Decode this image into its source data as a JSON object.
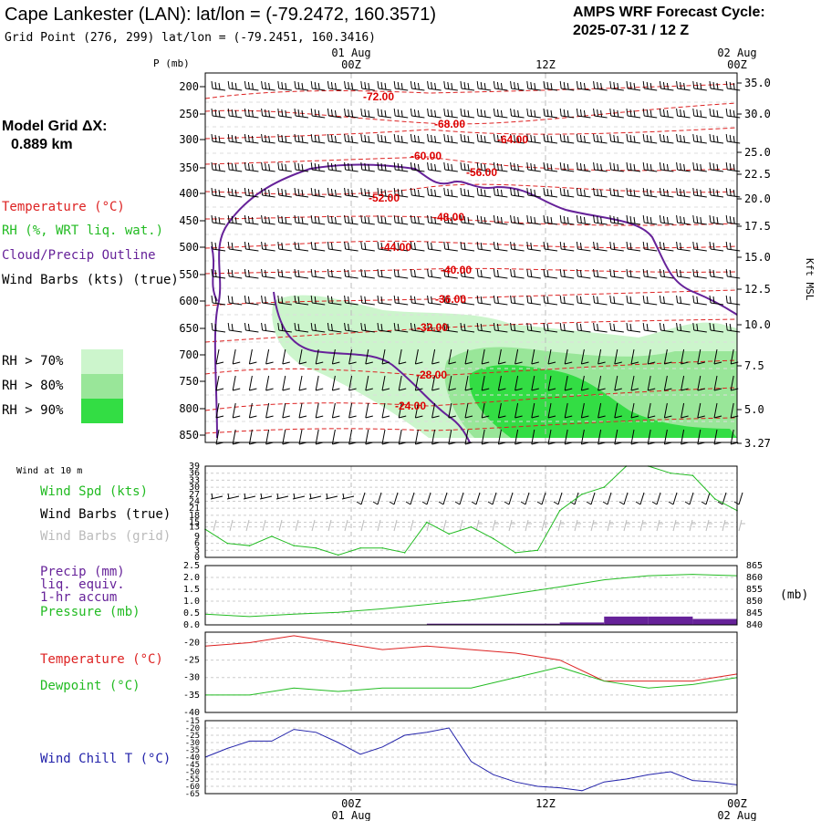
{
  "header": {
    "station_title": "Cape Lankester (LAN):  lat/lon = (-79.2472, 160.3571)",
    "grid_point": "Grid Point (276, 299) lat/lon = (-79.2451, 160.3416)",
    "cycle_title": "AMPS WRF Forecast Cycle:",
    "cycle_value": "2025-07-31 / 12  Z",
    "model_grid_label": "Model Grid ΔX:",
    "model_grid_value": "0.889 km"
  },
  "legend": {
    "temperature": "Temperature (°C)",
    "rh": "RH (%, WRT liq. wat.)",
    "cloud": "Cloud/Precip Outline",
    "wind": "Wind Barbs (kts) (true)",
    "rh70": "RH > 70%",
    "rh80": "RH > 80%",
    "rh90": "RH > 90%",
    "colors": {
      "rh70": "#ccf5cc",
      "rh80": "#99e699",
      "rh90": "#33dd44"
    }
  },
  "time_axis": {
    "top_labels": [
      {
        "label": "00Z",
        "date": "01 Aug"
      },
      {
        "label": "12Z",
        "date": ""
      },
      {
        "label": "00Z",
        "date": "02 Aug"
      }
    ],
    "bottom_labels": [
      {
        "label": "00Z",
        "date": "01 Aug"
      },
      {
        "label": "12Z",
        "date": ""
      },
      {
        "label": "00Z",
        "date": "02 Aug"
      }
    ]
  },
  "chart_data": [
    {
      "type": "heatmap",
      "name": "cross-section",
      "ylabel": "P (mb)",
      "ylabel_right": "Kft MSL",
      "y_ticks": [
        "200",
        "250",
        "300",
        "350",
        "400",
        "450",
        "500",
        "550",
        "600",
        "650",
        "700",
        "750",
        "800",
        "850"
      ],
      "y_ticks_right": [
        "35.0",
        "30.0",
        "25.0",
        "22.5",
        "20.0",
        "17.5",
        "15.0",
        "12.5",
        "10.0",
        "7.5",
        "5.0",
        "3.27"
      ],
      "temperature_labels": [
        "-72.00",
        "-68.00",
        "-64.00",
        "-60.00",
        "-56.00",
        "-52.00",
        "-48.00",
        "-44.00",
        "-40.00",
        "-36.00",
        "-32.00",
        "-28.00",
        "-24.00"
      ]
    },
    {
      "type": "line",
      "name": "wind",
      "title": "Wind at 10 m",
      "labels": [
        "Wind Spd (kts)",
        "Wind Barbs (true)",
        "Wind Barbs (grid)"
      ],
      "y_ticks": [
        "39",
        "36",
        "33",
        "30",
        "27",
        "24",
        "21",
        "18",
        "15",
        "13",
        "9",
        "6",
        "3",
        "0"
      ],
      "ylim": [
        0,
        39
      ],
      "x": [
        0,
        1,
        2,
        3,
        4,
        5,
        6,
        7,
        8,
        9,
        10,
        11,
        12,
        13,
        14,
        15,
        16,
        17,
        18,
        19,
        20,
        21,
        22,
        23,
        24
      ],
      "values": [
        12,
        6,
        5,
        9,
        5,
        4,
        1,
        4,
        4,
        2,
        15,
        10,
        13,
        8,
        2,
        3,
        20,
        27,
        30,
        39,
        39,
        36,
        35,
        25,
        20
      ]
    },
    {
      "type": "line",
      "name": "precip-pressure",
      "labels": [
        "Precip (mm)",
        "liq. equiv.",
        "1-hr accum",
        "Pressure (mb)"
      ],
      "y_ticks": [
        "2.5",
        "2.0",
        "1.5",
        "1.0",
        "0.5",
        "0.0"
      ],
      "y_ticks_right": [
        "865",
        "860",
        "855",
        "850",
        "845",
        "840"
      ],
      "ylim": [
        0,
        2.5
      ],
      "ylim_right": [
        840,
        865
      ],
      "y_unit_right": "(mb)",
      "x": [
        0,
        2,
        4,
        6,
        8,
        10,
        12,
        14,
        16,
        18,
        20,
        22,
        24
      ],
      "values": [
        844.5,
        843.5,
        844.5,
        845.3,
        846.8,
        848.6,
        850.5,
        853.2,
        856.0,
        859.0,
        860.7,
        861.3,
        860.7
      ],
      "precip": [
        0,
        0,
        0,
        0,
        0,
        0.05,
        0.05,
        0.05,
        0.1,
        0.35,
        0.35,
        0.25,
        0.1
      ]
    },
    {
      "type": "line",
      "name": "temperature-dewpoint",
      "labels": [
        "Temperature (°C)",
        "Dewpoint (°C)"
      ],
      "y_ticks": [
        "-20",
        "-25",
        "-30",
        "-35",
        "-40"
      ],
      "ylim": [
        -40,
        -17
      ],
      "x": [
        0,
        2,
        4,
        6,
        8,
        10,
        12,
        14,
        16,
        18,
        20,
        22,
        24
      ],
      "series": [
        {
          "name": "Temperature (°C)",
          "values": [
            -21,
            -20,
            -18,
            -20,
            -22,
            -21,
            -22,
            -23,
            -25,
            -31,
            -31,
            -31,
            -29
          ]
        },
        {
          "name": "Dewpoint (°C)",
          "values": [
            -35,
            -35,
            -33,
            -34,
            -33,
            -33,
            -33,
            -30,
            -27,
            -31,
            -33,
            -32,
            -30
          ]
        }
      ]
    },
    {
      "type": "line",
      "name": "wind-chill",
      "labels": [
        "Wind Chill T (°C)"
      ],
      "y_ticks": [
        "-15",
        "-20",
        "-25",
        "-30",
        "-35",
        "-40",
        "-45",
        "-50",
        "-55",
        "-60",
        "-65"
      ],
      "ylim": [
        -65,
        -15
      ],
      "x": [
        0,
        1,
        2,
        3,
        4,
        5,
        6,
        7,
        8,
        9,
        10,
        11,
        12,
        13,
        14,
        15,
        16,
        17,
        18,
        19,
        20,
        21,
        22,
        23,
        24
      ],
      "values": [
        -40,
        -34,
        -29,
        -29,
        -21,
        -23,
        -30,
        -38,
        -33,
        -25,
        -23,
        -20,
        -43,
        -52,
        -57,
        -60,
        -61,
        -63,
        -57,
        -55,
        -52,
        -50,
        -56,
        -57,
        -59
      ]
    }
  ]
}
